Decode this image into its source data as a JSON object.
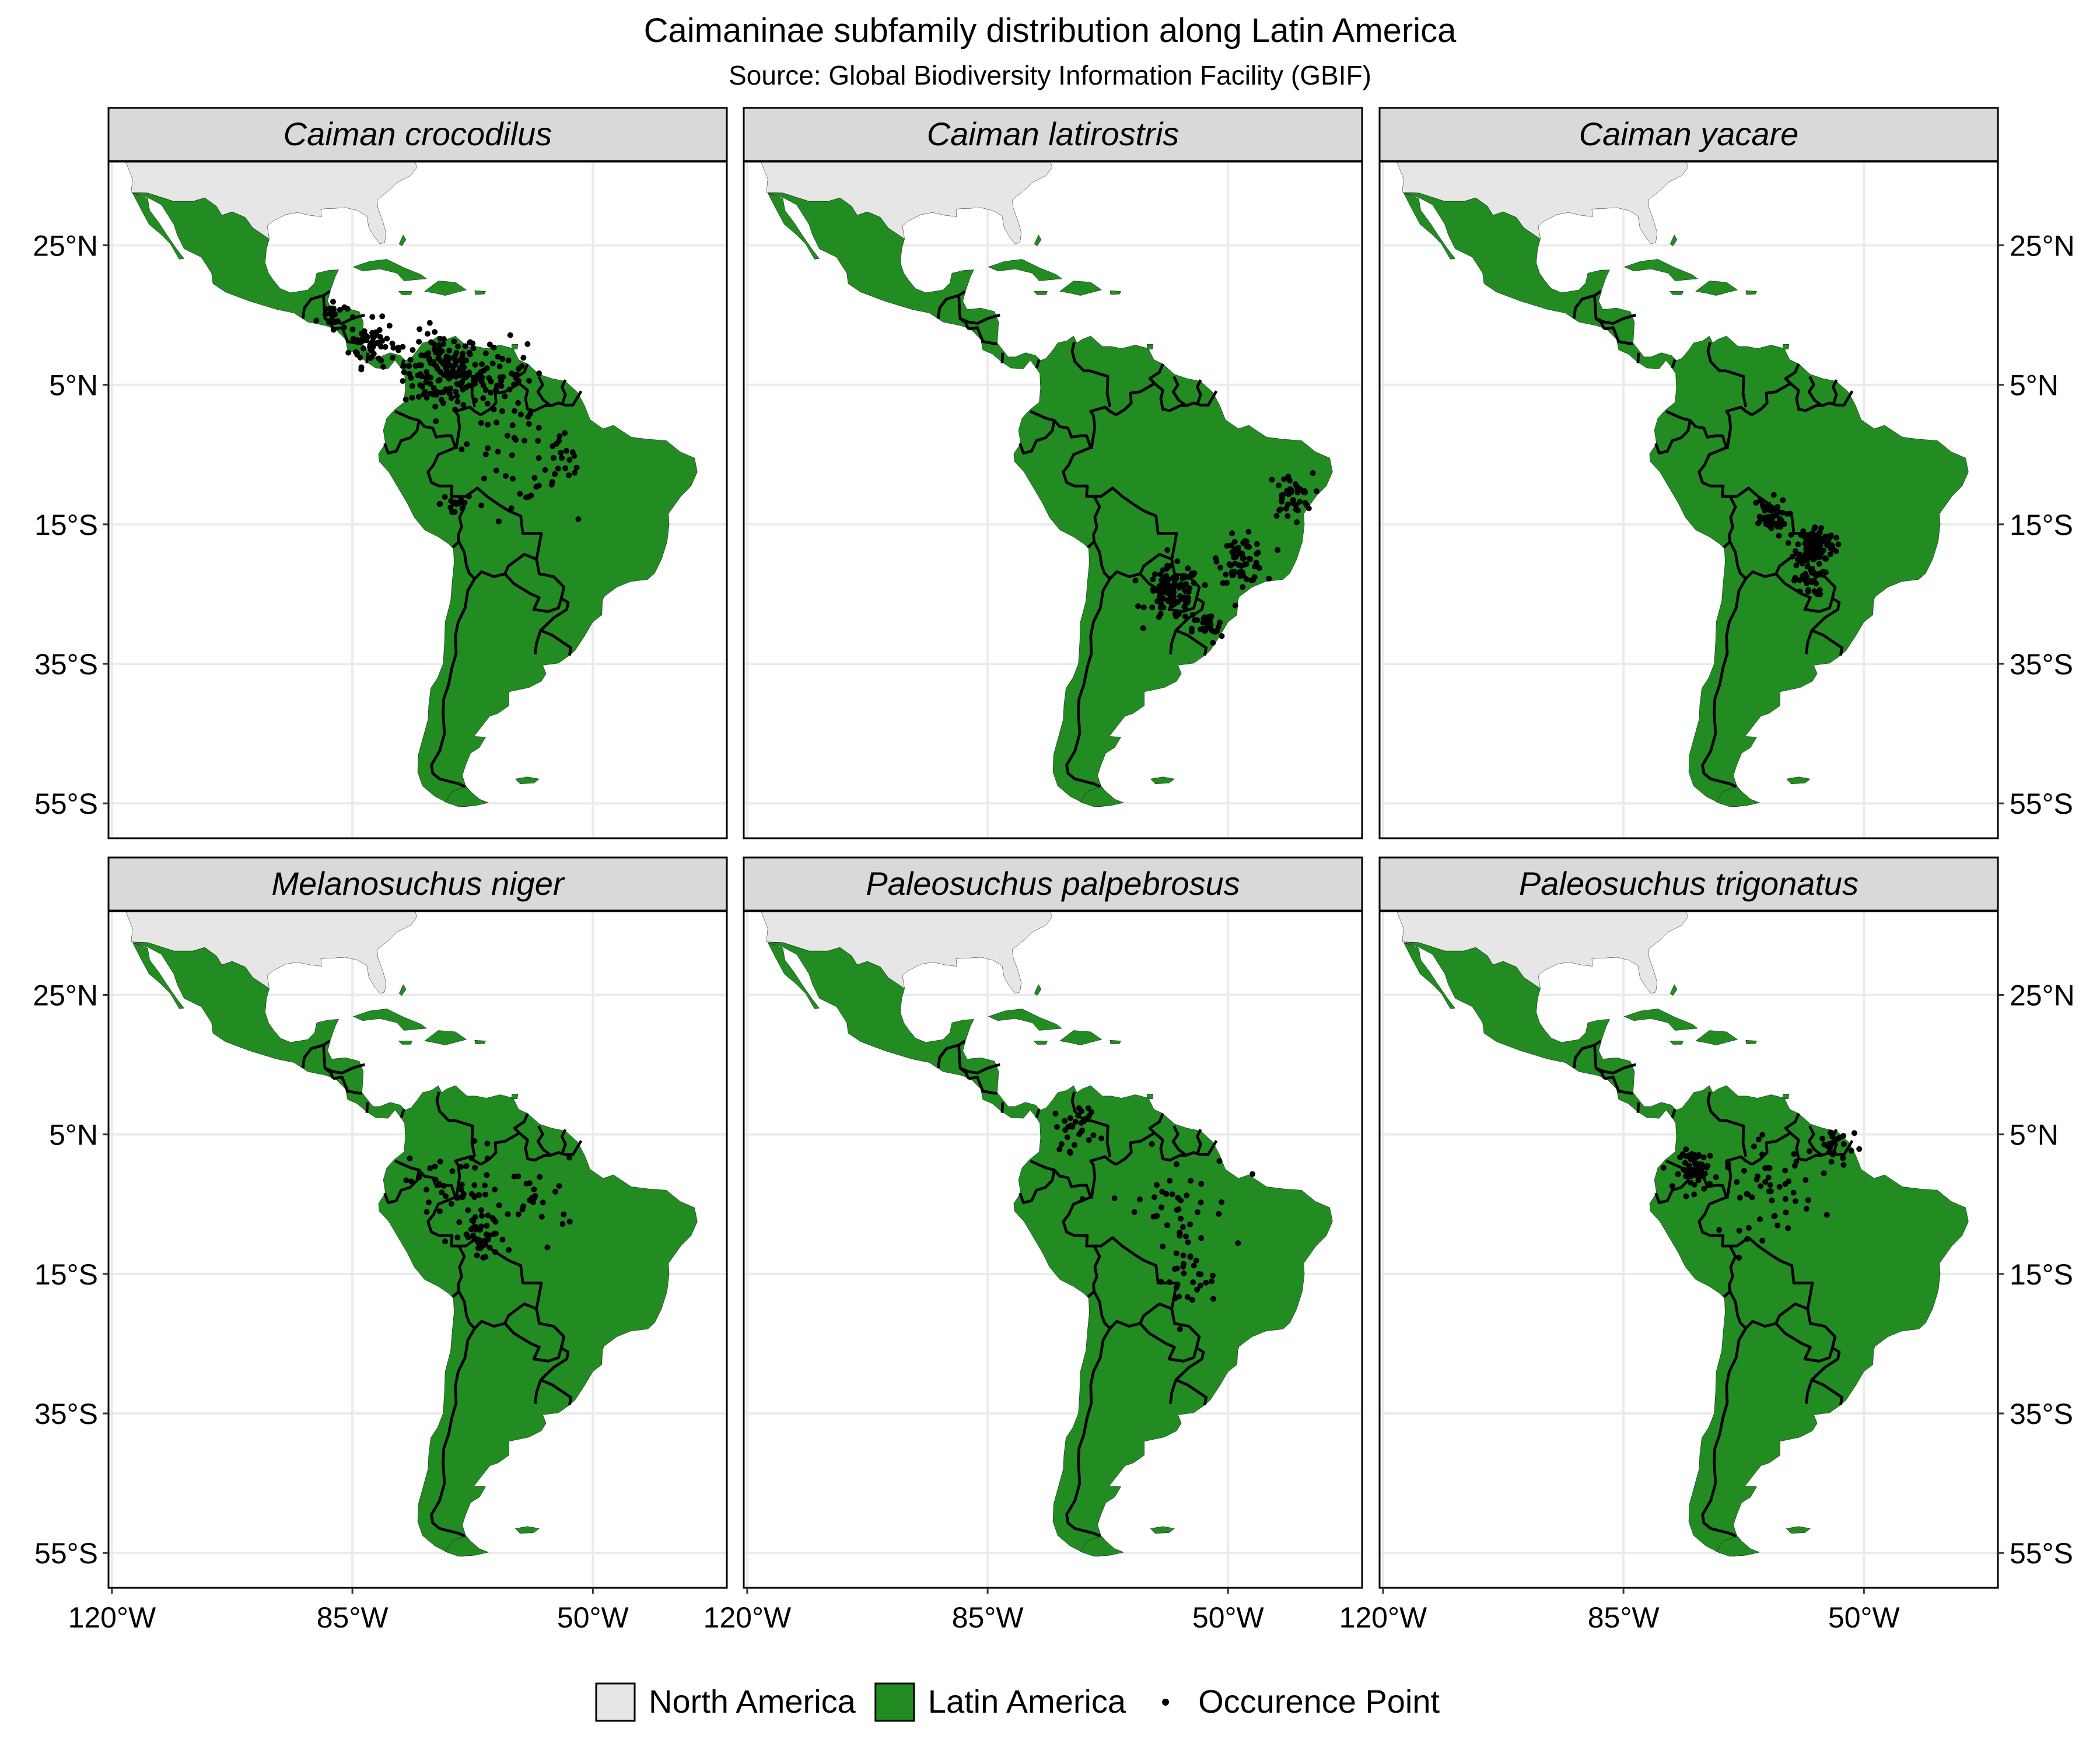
{
  "title": "Caimaninae subfamily distribution along Latin America",
  "subtitle": "Source: Global Biodiversity Information Facility (GBIF)",
  "colors": {
    "north_america": "#e6e6e6",
    "latin_america": "#228b22",
    "outline": "#000000",
    "strip": "#d9d9d9",
    "grid": "#ebebeb",
    "point": "#000000"
  },
  "axes": {
    "x_ticks": [
      {
        "lon": -120,
        "label": "120°W"
      },
      {
        "lon": -85,
        "label": "85°W"
      },
      {
        "lon": -50,
        "label": "50°W"
      }
    ],
    "y_ticks": [
      {
        "lat": 25,
        "label": "25°N"
      },
      {
        "lat": 5,
        "label": "5°N"
      },
      {
        "lat": -15,
        "label": "15°S"
      },
      {
        "lat": -35,
        "label": "35°S"
      },
      {
        "lat": -55,
        "label": "55°S"
      }
    ],
    "lon_range": [
      -120.5,
      -30.5
    ],
    "lat_range": [
      37,
      -60
    ]
  },
  "legend": {
    "items": [
      {
        "key": "north_america",
        "label": "North America"
      },
      {
        "key": "latin_america",
        "label": "Latin America"
      },
      {
        "key": "point",
        "label": "Occurence Point"
      }
    ]
  },
  "chart_data": {
    "type": "map",
    "panels": [
      {
        "species": "Caiman crocodilus",
        "clusters": [
          {
            "lon": -72,
            "lat": 7,
            "spread": 5,
            "n": 150
          },
          {
            "lon": -82,
            "lat": 11,
            "spread": 3,
            "n": 60
          },
          {
            "lon": -88,
            "lat": 15,
            "spread": 2,
            "n": 25
          },
          {
            "lon": -64,
            "lat": 7,
            "spread": 4,
            "n": 40
          },
          {
            "lon": -62,
            "lat": -3,
            "spread": 8,
            "n": 50
          },
          {
            "lon": -55,
            "lat": -7,
            "spread": 4,
            "n": 20
          },
          {
            "lon": -70,
            "lat": -12,
            "spread": 2,
            "n": 15
          }
        ]
      },
      {
        "species": "Caiman latirostris",
        "clusters": [
          {
            "lon": -58,
            "lat": -25,
            "spread": 3.5,
            "n": 110
          },
          {
            "lon": -48,
            "lat": -20,
            "spread": 3,
            "n": 70
          },
          {
            "lon": -41,
            "lat": -11,
            "spread": 3,
            "n": 40
          },
          {
            "lon": -53,
            "lat": -30,
            "spread": 2,
            "n": 30
          }
        ]
      },
      {
        "species": "Caiman yacare",
        "clusters": [
          {
            "lon": -57,
            "lat": -18,
            "spread": 2.5,
            "n": 120
          },
          {
            "lon": -64,
            "lat": -14,
            "spread": 2.5,
            "n": 50
          },
          {
            "lon": -58,
            "lat": -23,
            "spread": 2,
            "n": 30
          }
        ]
      },
      {
        "species": "Melanosuchus niger",
        "clusters": [
          {
            "lon": -70,
            "lat": -3,
            "spread": 6,
            "n": 50
          },
          {
            "lon": -66,
            "lat": -10,
            "spread": 3,
            "n": 40
          },
          {
            "lon": -58,
            "lat": -4,
            "spread": 5,
            "n": 25
          }
        ]
      },
      {
        "species": "Paleosuchus palpebrosus",
        "clusters": [
          {
            "lon": -72,
            "lat": 6,
            "spread": 3,
            "n": 30
          },
          {
            "lon": -58,
            "lat": -6,
            "spread": 8,
            "n": 45
          },
          {
            "lon": -56,
            "lat": -16,
            "spread": 4,
            "n": 25
          }
        ]
      },
      {
        "species": "Paleosuchus trigonatus",
        "clusters": [
          {
            "lon": -74,
            "lat": 0,
            "spread": 2.5,
            "n": 60
          },
          {
            "lon": -64,
            "lat": -3,
            "spread": 6,
            "n": 50
          },
          {
            "lon": -54,
            "lat": 3,
            "spread": 3,
            "n": 25
          }
        ]
      }
    ]
  }
}
